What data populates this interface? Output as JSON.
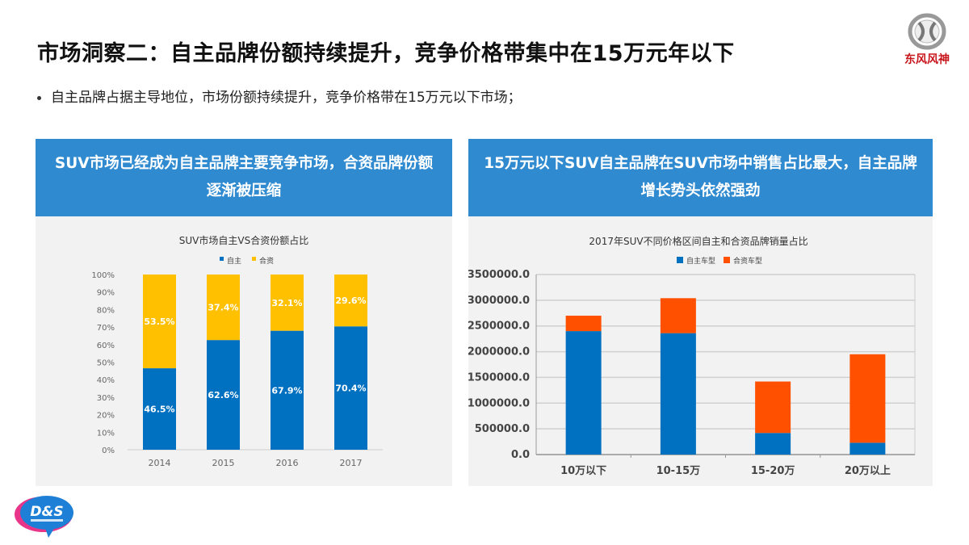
{
  "header": {
    "title": "市场洞察二：自主品牌份额持续提升，竞争价格带集中在15万元年以下",
    "bullet": "自主品牌占据主导地位，市场份额持续提升，竞争价格带在15万元以下市场；"
  },
  "logos": {
    "brand": "东风风神",
    "agency": "D&S"
  },
  "panels": [
    {
      "heading": "SUV市场已经成为自主品牌主要竞争市场，合资品牌份额逐渐被压缩"
    },
    {
      "heading": "15万元以下SUV自主品牌在SUV市场中销售占比最大，自主品牌增长势头依然强劲"
    }
  ],
  "chart_data": [
    {
      "type": "bar",
      "stacked": true,
      "title": "SUV市场自主VS合资份额占比",
      "categories": [
        "2014",
        "2015",
        "2016",
        "2017"
      ],
      "series": [
        {
          "name": "自主",
          "values": [
            46.5,
            62.6,
            67.9,
            70.4
          ],
          "labels": [
            "46.5%",
            "62.6%",
            "67.9%",
            "70.4%"
          ],
          "color": "#0070c0"
        },
        {
          "name": "合资",
          "values": [
            53.5,
            37.4,
            32.1,
            29.6
          ],
          "labels": [
            "53.5%",
            "37.4%",
            "32.1%",
            "29.6%"
          ],
          "color": "#ffc000"
        }
      ],
      "yticks": [
        "0%",
        "10%",
        "20%",
        "30%",
        "40%",
        "50%",
        "60%",
        "70%",
        "80%",
        "90%",
        "100%"
      ],
      "ylim": [
        0,
        100
      ],
      "grid": false,
      "legend": "top"
    },
    {
      "type": "bar",
      "stacked": true,
      "title": "2017年SUV不同价格区间自主和合资品牌销量占比",
      "categories": [
        "10万以下",
        "10-15万",
        "15-20万",
        "20万以上"
      ],
      "series": [
        {
          "name": "自主车型",
          "values": [
            2400000,
            2360000,
            420000,
            230000
          ],
          "color": "#0070c0"
        },
        {
          "name": "合资车型",
          "values": [
            300000,
            680000,
            1000000,
            1720000
          ],
          "color": "#ff5000"
        }
      ],
      "yticks": [
        "0.0",
        "500000.0",
        "1000000.0",
        "1500000.0",
        "2000000.0",
        "2500000.0",
        "3000000.0",
        "3500000.0"
      ],
      "ylim": [
        0,
        3500000
      ],
      "grid": true,
      "legend": "top"
    }
  ]
}
